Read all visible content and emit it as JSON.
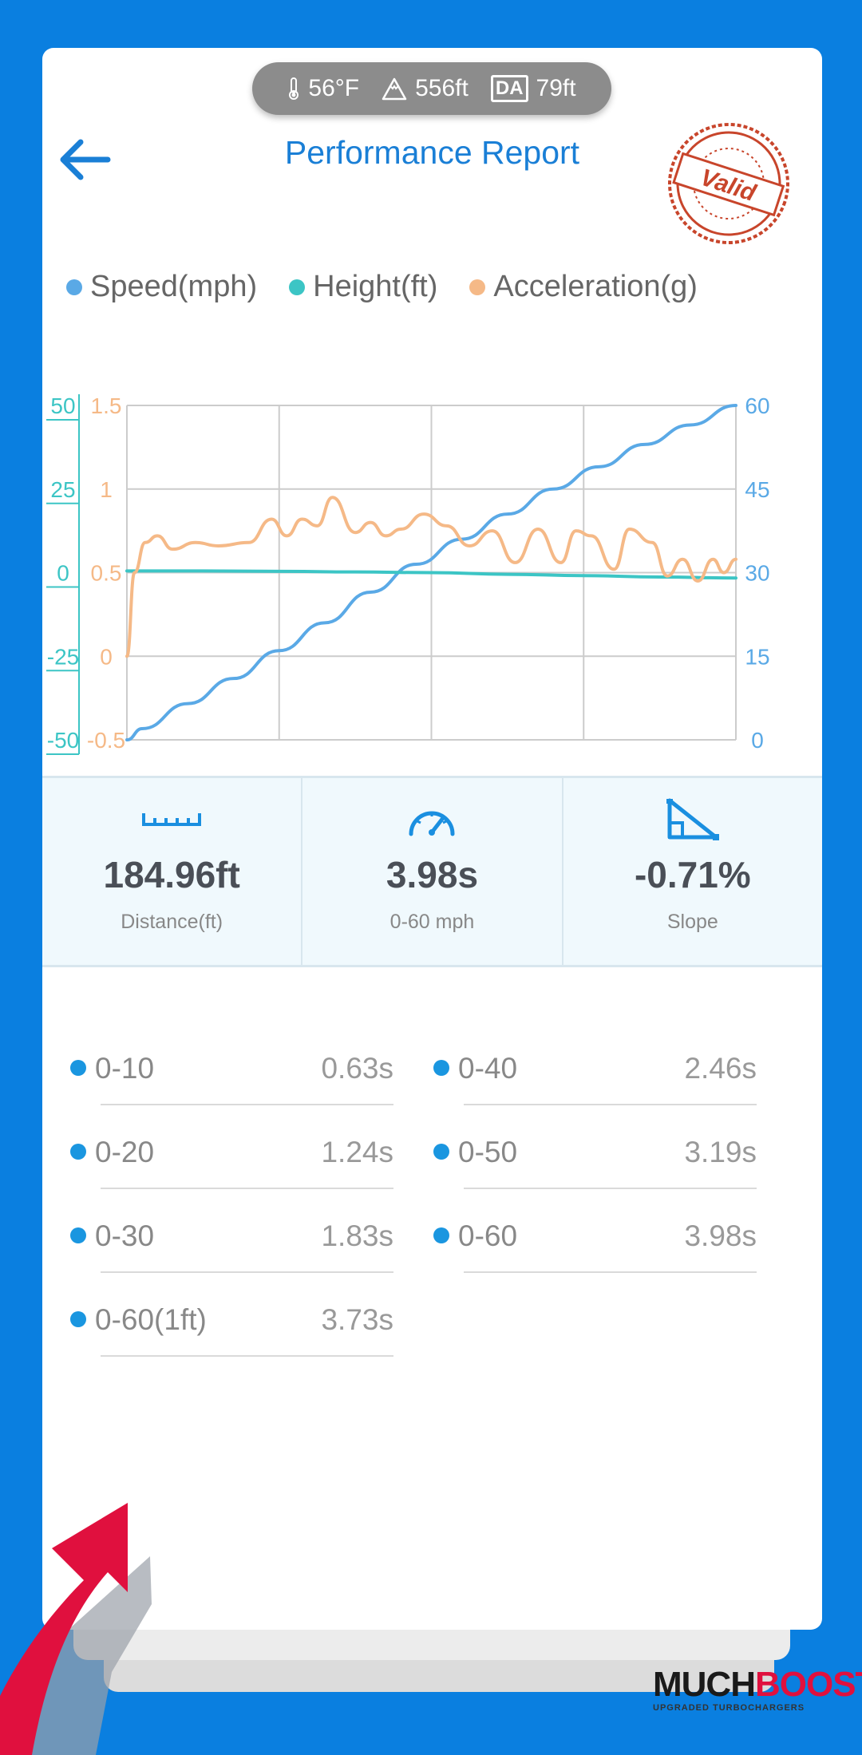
{
  "env": {
    "temperature": "56°F",
    "altitude": "556ft",
    "da_label": "DA",
    "density_altitude": "79ft"
  },
  "header": {
    "title": "Performance Report",
    "stamp_text": "Valid"
  },
  "legend": [
    {
      "label": "Speed(mph)",
      "color": "#5aa9e6"
    },
    {
      "label": "Height(ft)",
      "color": "#3cc5c5"
    },
    {
      "label": "Acceleration(g)",
      "color": "#f5b987"
    }
  ],
  "chart_data": {
    "type": "line",
    "x_range": [
      0,
      4
    ],
    "axes": {
      "height_axis": {
        "ticks": [
          "50",
          "25",
          "0",
          "-25",
          "-50"
        ],
        "range": [
          -50,
          50
        ],
        "color": "#3cc5c5"
      },
      "acceleration_axis": {
        "ticks": [
          "1.5",
          "1",
          "0.5",
          "0",
          "-0.5"
        ],
        "range": [
          -0.5,
          1.5
        ],
        "color": "#f5b987"
      },
      "speed_axis": {
        "ticks": [
          "60",
          "45",
          "30",
          "15",
          "0"
        ],
        "range": [
          0,
          60
        ],
        "color": "#5aa9e6"
      }
    },
    "grid": true,
    "series": [
      {
        "name": "Speed(mph)",
        "axis": "speed_axis",
        "color": "#5aa9e6",
        "x": [
          0,
          0.1,
          0.4,
          0.7,
          1.0,
          1.3,
          1.6,
          1.9,
          2.2,
          2.5,
          2.8,
          3.1,
          3.4,
          3.7,
          4.0
        ],
        "y": [
          0,
          2,
          6.5,
          11,
          16,
          21,
          26.5,
          31.5,
          36,
          40.5,
          45,
          49,
          53,
          56.5,
          60
        ]
      },
      {
        "name": "Height(ft)",
        "axis": "height_axis",
        "color": "#3cc5c5",
        "x": [
          0,
          0.5,
          1.0,
          1.5,
          2.0,
          2.5,
          3.0,
          3.5,
          4.0
        ],
        "y": [
          0.5,
          0.5,
          0.4,
          0.2,
          0,
          -0.5,
          -0.9,
          -1.3,
          -1.6
        ]
      },
      {
        "name": "Acceleration(g)",
        "axis": "acceleration_axis",
        "color": "#f5b987",
        "x": [
          0,
          0.05,
          0.12,
          0.2,
          0.3,
          0.45,
          0.6,
          0.8,
          0.95,
          1.05,
          1.15,
          1.25,
          1.35,
          1.5,
          1.6,
          1.7,
          1.8,
          1.95,
          2.1,
          2.25,
          2.4,
          2.55,
          2.7,
          2.85,
          2.95,
          3.05,
          3.2,
          3.3,
          3.45,
          3.55,
          3.65,
          3.75,
          3.85,
          3.92,
          4.0
        ],
        "y": [
          0,
          0.5,
          0.68,
          0.72,
          0.64,
          0.68,
          0.66,
          0.68,
          0.82,
          0.72,
          0.82,
          0.78,
          0.95,
          0.74,
          0.8,
          0.72,
          0.76,
          0.85,
          0.78,
          0.66,
          0.75,
          0.56,
          0.76,
          0.56,
          0.75,
          0.72,
          0.52,
          0.76,
          0.68,
          0.48,
          0.58,
          0.45,
          0.58,
          0.5,
          0.58
        ]
      }
    ]
  },
  "stats": [
    {
      "icon": "ruler-icon",
      "value": "184.96ft",
      "label": "Distance(ft)"
    },
    {
      "icon": "speedometer-icon",
      "value": "3.98s",
      "label": "0-60 mph"
    },
    {
      "icon": "slope-icon",
      "value": "-0.71%",
      "label": "Slope"
    }
  ],
  "splits": [
    {
      "label": "0-10",
      "time": "0.63s"
    },
    {
      "label": "0-40",
      "time": "2.46s"
    },
    {
      "label": "0-20",
      "time": "1.24s"
    },
    {
      "label": "0-50",
      "time": "3.19s"
    },
    {
      "label": "0-30",
      "time": "1.83s"
    },
    {
      "label": "0-60",
      "time": "3.98s"
    },
    {
      "label": "0-60(1ft)",
      "time": "3.73s"
    }
  ],
  "brand": {
    "part1": "MUCH",
    "part2": "BOOST",
    "tagline": "UPGRADED TURBOCHARGERS"
  }
}
